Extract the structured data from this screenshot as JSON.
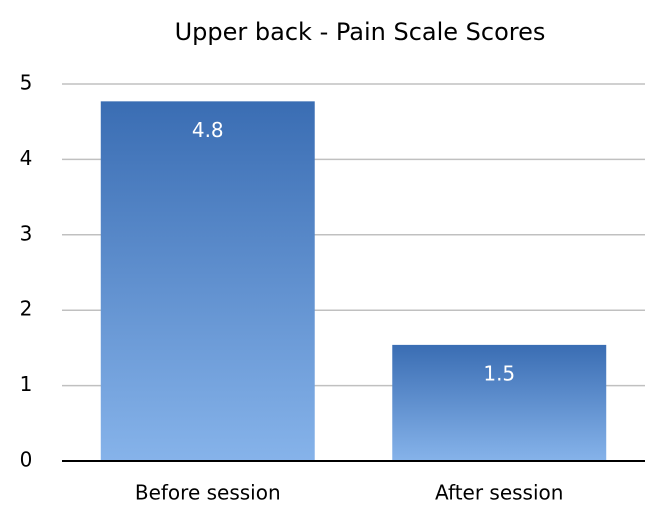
{
  "chart_data": {
    "type": "bar",
    "title": "Upper back - Pain Scale Scores",
    "categories": [
      "Before session",
      "After session"
    ],
    "values": [
      4.77,
      1.54
    ],
    "value_labels": [
      "4.8",
      "1.5"
    ],
    "color": [
      "#3a6db3",
      "#86b3ea"
    ],
    "ylim": [
      0,
      5
    ],
    "yticks": [
      0,
      1,
      2,
      3,
      4,
      5
    ],
    "grid": true
  }
}
